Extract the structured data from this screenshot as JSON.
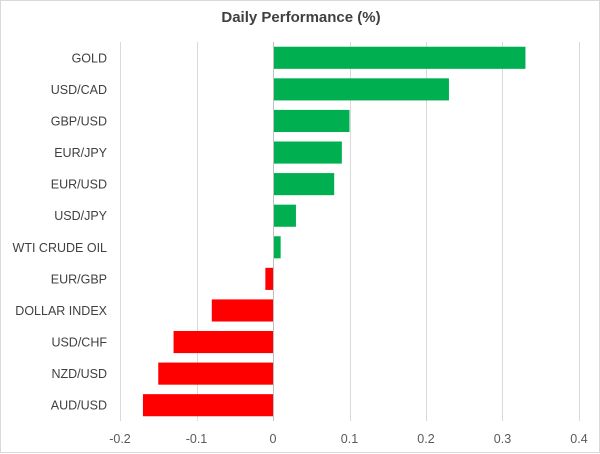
{
  "chart_data": {
    "type": "bar",
    "orientation": "horizontal",
    "title": "Daily Performance (%)",
    "xlabel": "",
    "ylabel": "",
    "categories": [
      "GOLD",
      "USD/CAD",
      "GBP/USD",
      "EUR/JPY",
      "EUR/USD",
      "USD/JPY",
      "WTI CRUDE OIL",
      "EUR/GBP",
      "DOLLAR INDEX",
      "USD/CHF",
      "NZD/USD",
      "AUD/USD"
    ],
    "values": [
      0.33,
      0.23,
      0.1,
      0.09,
      0.08,
      0.03,
      0.01,
      -0.01,
      -0.08,
      -0.13,
      -0.15,
      -0.17
    ],
    "xlim": [
      -0.2,
      0.4
    ],
    "xticks": [
      -0.2,
      -0.1,
      0,
      0.1,
      0.2,
      0.3,
      0.4
    ],
    "xtick_labels": [
      "-0.2",
      "-0.1",
      "0",
      "0.1",
      "0.2",
      "0.3",
      "0.4"
    ],
    "grid": "vertical",
    "legend": "none",
    "colors": {
      "positive": "#00b050",
      "negative": "#ff0000",
      "grid": "#d9d9d9",
      "axis": "#bfbfbf"
    }
  }
}
